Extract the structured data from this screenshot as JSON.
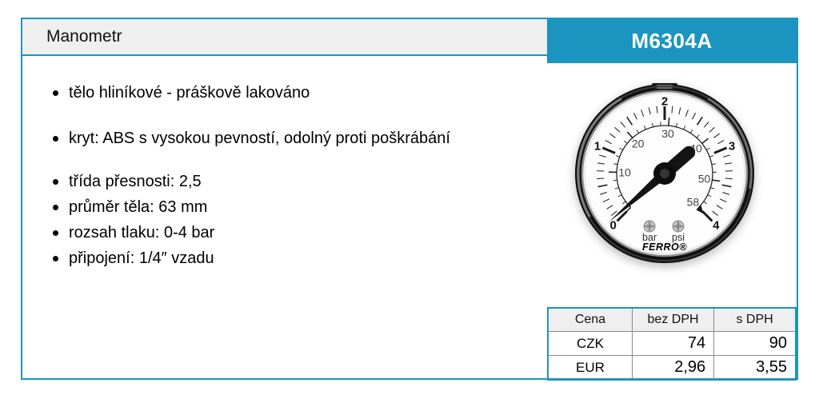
{
  "header": {
    "title": "Manometr",
    "product_code": "M6304A"
  },
  "features": [
    "tělo hliníkové - práškově lakováno",
    "kryt: ABS s vysokou pevností, odolný proti poškrábání",
    "třída přesnosti: 2,5",
    "průměr těla: 63 mm",
    "rozsah tlaku: 0-4 bar",
    "připojení: 1/4″ vzadu"
  ],
  "gauge": {
    "brand": "FERRO®",
    "unit_primary": "bar",
    "unit_secondary": "psi",
    "bar_labels": [
      "0",
      "1",
      "2",
      "3",
      "4"
    ],
    "psi_labels": [
      "10",
      "20",
      "30",
      "40",
      "50",
      "58"
    ],
    "scale": {
      "start": -135,
      "sweep": 270,
      "bar_max": 4,
      "psi_max": 58,
      "needle_angle": -131
    }
  },
  "price_table": {
    "headers": [
      "Cena",
      "bez DPH",
      "s DPH"
    ],
    "rows": [
      {
        "currency": "CZK",
        "net": "74",
        "gross": "90"
      },
      {
        "currency": "EUR",
        "net": "2,96",
        "gross": "3,55"
      }
    ]
  },
  "colors": {
    "accent": "#1b95c0",
    "panel_bg": "#efefef"
  }
}
